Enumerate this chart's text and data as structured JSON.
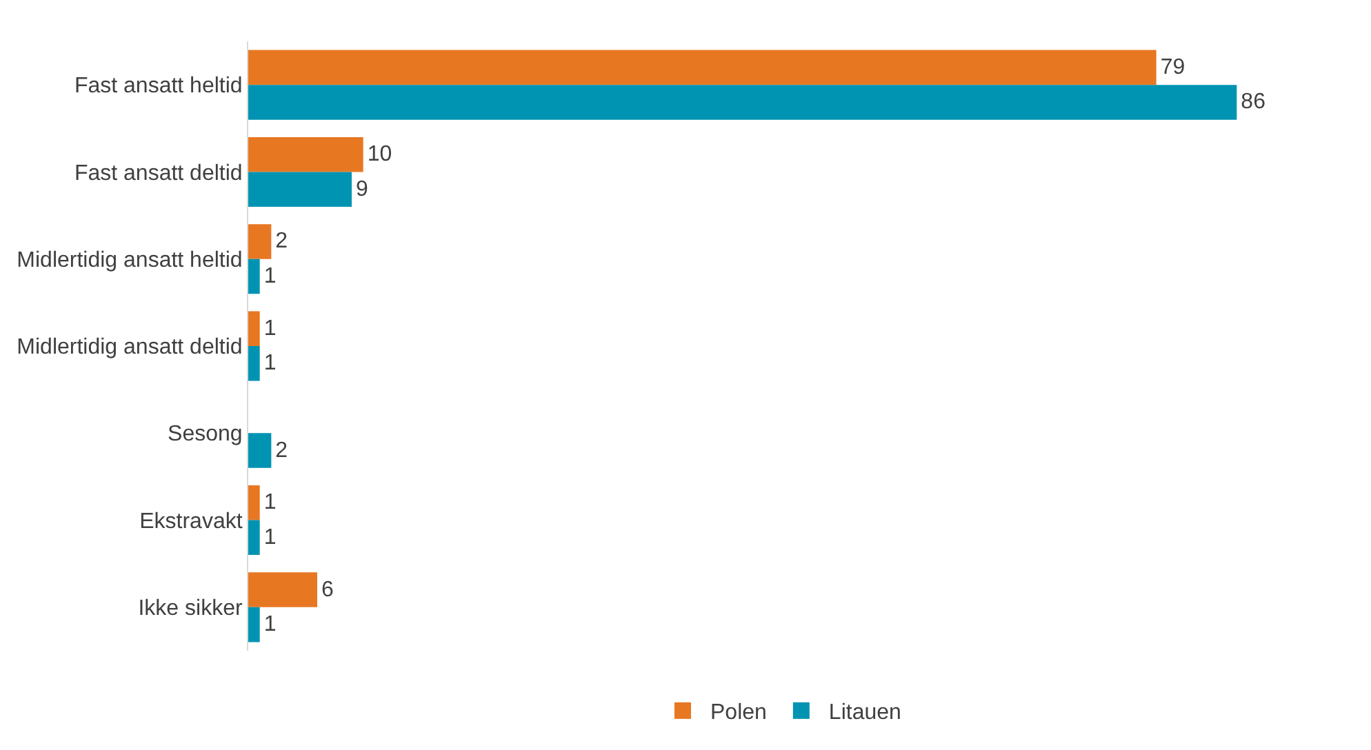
{
  "chart_data": {
    "type": "bar",
    "orientation": "horizontal",
    "categories": [
      "Fast ansatt heltid",
      "Fast ansatt deltid",
      "Midlertidig ansatt heltid",
      "Midlertidig ansatt deltid",
      "Sesong",
      "Ekstravakt",
      "Ikke sikker"
    ],
    "series": [
      {
        "name": "Polen",
        "color": "#e87722",
        "values": [
          79,
          10,
          2,
          1,
          null,
          1,
          6
        ]
      },
      {
        "name": "Litauen",
        "color": "#0093b2",
        "values": [
          86,
          9,
          1,
          1,
          2,
          1,
          1
        ]
      }
    ],
    "data_labels": true,
    "legend": "bottom"
  }
}
